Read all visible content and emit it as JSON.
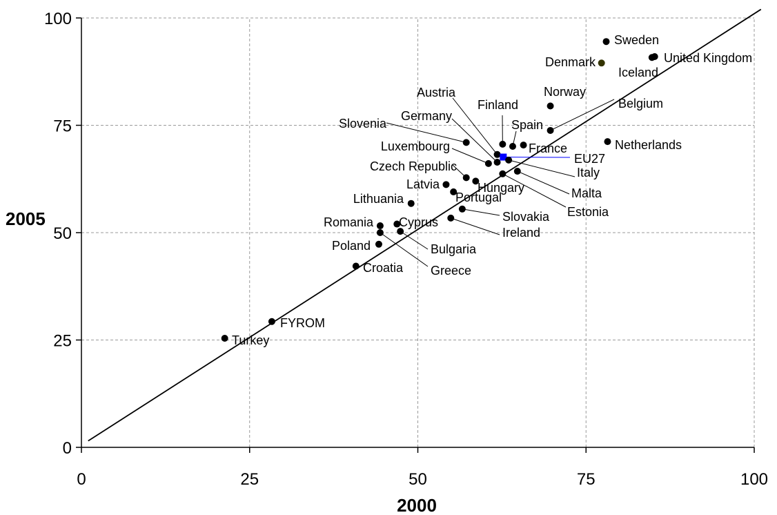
{
  "chart_data": {
    "type": "scatter",
    "title": "",
    "xlabel": "2000",
    "ylabel": "2005",
    "xlim": [
      0,
      100
    ],
    "ylim": [
      0,
      100
    ],
    "xticks": [
      "0",
      "25",
      "50",
      "75",
      "100"
    ],
    "yticks": [
      "0",
      "25",
      "50",
      "75",
      "100"
    ],
    "grid": true,
    "reference_line": {
      "type": "diagonal",
      "from": [
        1,
        1.5
      ],
      "to": [
        101,
        102
      ]
    },
    "colors": {
      "point": "#000000",
      "highlight": "#0000ff",
      "denmark": "#333300"
    },
    "points": [
      {
        "label": "Sweden",
        "x": 78,
        "y": 94.5
      },
      {
        "label": "United Kingdom",
        "x": 85.2,
        "y": 91
      },
      {
        "label": "Iceland",
        "x": 84.8,
        "y": 90.8
      },
      {
        "label": "Denmark",
        "x": 77.3,
        "y": 89.5
      },
      {
        "label": "Norway",
        "x": 69.7,
        "y": 79.5
      },
      {
        "label": "Belgium",
        "x": 69.7,
        "y": 73.8
      },
      {
        "label": "Netherlands",
        "x": 78.2,
        "y": 71.2
      },
      {
        "label": "Slovenia",
        "x": 57.2,
        "y": 71
      },
      {
        "label": "Finland",
        "x": 62.6,
        "y": 70.6
      },
      {
        "label": "Spain",
        "x": 64.1,
        "y": 70.1
      },
      {
        "label": "France",
        "x": 65.7,
        "y": 70.4
      },
      {
        "label": "Austria",
        "x": 61.8,
        "y": 68.2
      },
      {
        "label": "Germany",
        "x": 61.8,
        "y": 66.4
      },
      {
        "label": "EU27",
        "x": 62.7,
        "y": 67.6
      },
      {
        "label": "Italy",
        "x": 63.5,
        "y": 66.9
      },
      {
        "label": "Luxembourg",
        "x": 60.5,
        "y": 66.1
      },
      {
        "label": "Malta",
        "x": 64.8,
        "y": 64.3
      },
      {
        "label": "Estonia",
        "x": 62.6,
        "y": 63.7
      },
      {
        "label": "Czech Republic",
        "x": 57.2,
        "y": 62.8
      },
      {
        "label": "Hungary",
        "x": 58.6,
        "y": 62
      },
      {
        "label": "Latvia",
        "x": 54.2,
        "y": 61.2
      },
      {
        "label": "Portugal",
        "x": 55.3,
        "y": 59.5
      },
      {
        "label": "Lithuania",
        "x": 49,
        "y": 56.8
      },
      {
        "label": "Slovakia",
        "x": 56.6,
        "y": 55.5
      },
      {
        "label": "Ireland",
        "x": 54.9,
        "y": 53.4
      },
      {
        "label": "Romania",
        "x": 44.4,
        "y": 51.6
      },
      {
        "label": "Cyprus",
        "x": 46.9,
        "y": 52
      },
      {
        "label": "Bulgaria",
        "x": 47.4,
        "y": 50.3
      },
      {
        "label": "Greece",
        "x": 44.4,
        "y": 50
      },
      {
        "label": "Poland",
        "x": 44.2,
        "y": 47.3
      },
      {
        "label": "Croatia",
        "x": 40.8,
        "y": 42.2
      },
      {
        "label": "FYROM",
        "x": 28.3,
        "y": 29.3
      },
      {
        "label": "Turkey",
        "x": 21.3,
        "y": 25.4
      }
    ]
  }
}
